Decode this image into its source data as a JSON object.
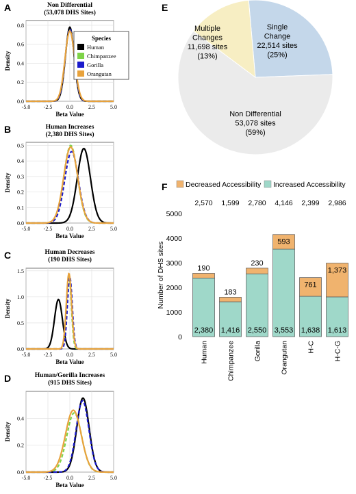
{
  "chart_data": [
    {
      "panel": "A",
      "type": "line",
      "title": "Non Differential",
      "subtitle": "(53,078 DHS Sites)",
      "xlabel": "Beta Value",
      "ylabel": "Density",
      "xlim": [
        -5,
        5
      ],
      "ylim": [
        0,
        0.85
      ],
      "xticks": [
        "-5.0",
        "-2.5",
        "0.0",
        "2.5",
        "5.0"
      ],
      "yticks": [
        "0.0",
        "0.2",
        "0.4",
        "0.6",
        "0.8"
      ],
      "grid": true,
      "legend": {
        "title": "Species",
        "placement": "right",
        "entries": [
          "Human",
          "Chimpanzee",
          "Gorilla",
          "Orangutan"
        ]
      },
      "series": [
        {
          "name": "Human",
          "color": "#000000",
          "style": "solid",
          "mean": 0.0,
          "sd": 0.5,
          "peak": 0.78
        },
        {
          "name": "Chimpanzee",
          "color": "#7ed348",
          "style": "dashed",
          "mean": 0.0,
          "sd": 0.52,
          "peak": 0.76
        },
        {
          "name": "Gorilla",
          "color": "#1a1acc",
          "style": "dashed",
          "mean": 0.0,
          "sd": 0.52,
          "peak": 0.76
        },
        {
          "name": "Orangutan",
          "color": "#e8a23c",
          "style": "solid",
          "mean": 0.0,
          "sd": 0.55,
          "peak": 0.74
        }
      ]
    },
    {
      "panel": "B",
      "type": "line",
      "title": "Human Increases",
      "subtitle": "(2,380 DHS Sites)",
      "xlabel": "Beta Value",
      "ylabel": "Density",
      "xlim": [
        -5,
        5
      ],
      "ylim": [
        0,
        0.52
      ],
      "xticks": [
        "-5.0",
        "-2.5",
        "0.0",
        "2.5",
        "5.0"
      ],
      "yticks": [
        "0.0",
        "0.1",
        "0.2",
        "0.3",
        "0.4",
        "0.5"
      ],
      "grid": true,
      "series": [
        {
          "name": "Human",
          "color": "#000000",
          "style": "solid",
          "mean": 1.6,
          "sd": 0.75,
          "peak": 0.48
        },
        {
          "name": "Chimpanzee",
          "color": "#7ed348",
          "style": "dashed",
          "mean": 0.1,
          "sd": 0.78,
          "peak": 0.5
        },
        {
          "name": "Gorilla",
          "color": "#1a1acc",
          "style": "dashed",
          "mean": 0.2,
          "sd": 0.78,
          "peak": 0.46
        },
        {
          "name": "Orangutan",
          "color": "#e8a23c",
          "style": "solid",
          "mean": 0.1,
          "sd": 0.8,
          "peak": 0.49
        }
      ]
    },
    {
      "panel": "C",
      "type": "line",
      "title": "Human Decreases",
      "subtitle": "(190 DHS Sites)",
      "xlabel": "Beta Value",
      "ylabel": "Density",
      "xlim": [
        -5,
        5
      ],
      "ylim": [
        0,
        1.55
      ],
      "xticks": [
        "-5.0",
        "-2.5",
        "0.0",
        "2.5",
        "5.0"
      ],
      "yticks": [
        "0.0",
        "0.5",
        "1.0",
        "1.5"
      ],
      "grid": true,
      "series": [
        {
          "name": "Human",
          "color": "#000000",
          "style": "solid",
          "mean": -1.3,
          "sd": 0.45,
          "peak": 0.95
        },
        {
          "name": "Chimpanzee",
          "color": "#7ed348",
          "style": "dashed",
          "mean": -0.1,
          "sd": 0.27,
          "peak": 1.42
        },
        {
          "name": "Gorilla",
          "color": "#1a1acc",
          "style": "dashed",
          "mean": 0.0,
          "sd": 0.28,
          "peak": 1.38
        },
        {
          "name": "Orangutan",
          "color": "#e8a23c",
          "style": "solid",
          "mean": -0.1,
          "sd": 0.3,
          "peak": 1.45
        }
      ]
    },
    {
      "panel": "D",
      "type": "line",
      "title": "Human/Gorilla Increases",
      "subtitle": "(915 DHS Sites)",
      "xlabel": "Beta Value",
      "ylabel": "Density",
      "xlim": [
        -5,
        5
      ],
      "ylim": [
        0,
        0.6
      ],
      "xticks": [
        "-5.0",
        "-2.5",
        "0.0",
        "2.5",
        "5.0"
      ],
      "yticks": [
        "0.0",
        "0.2",
        "0.4"
      ],
      "grid": true,
      "series": [
        {
          "name": "Human",
          "color": "#000000",
          "style": "solid",
          "mean": 1.5,
          "sd": 0.7,
          "peak": 0.55
        },
        {
          "name": "Chimpanzee",
          "color": "#7ed348",
          "style": "dashed",
          "mean": 0.5,
          "sd": 0.85,
          "peak": 0.44
        },
        {
          "name": "Gorilla",
          "color": "#1a1acc",
          "style": "dashed",
          "mean": 1.45,
          "sd": 0.72,
          "peak": 0.53
        },
        {
          "name": "Orangutan",
          "color": "#e8a23c",
          "style": "solid",
          "mean": 0.4,
          "sd": 0.9,
          "peak": 0.46
        }
      ]
    },
    {
      "panel": "E",
      "type": "pie",
      "slices": [
        {
          "label": "Single Change",
          "value": 22514,
          "text": "22,514 sites",
          "pct": "(25%)",
          "color": "#c4d7ea"
        },
        {
          "label": "Non Differential",
          "value": 53078,
          "text": "53,078 sites",
          "pct": "(59%)",
          "color": "#ebebeb"
        },
        {
          "label": "Multiple Changes",
          "value": 11698,
          "text": "11,698 sites",
          "pct": "(13%)",
          "color": "#f7eec3"
        }
      ],
      "label_lines": [
        {
          "slice": 0,
          "lines": [
            "Single",
            "Change",
            "22,514 sites",
            "(25%)"
          ]
        },
        {
          "slice": 1,
          "lines": [
            "Non Differential",
            "53,078 sites",
            "(59%)"
          ]
        },
        {
          "slice": 2,
          "lines": [
            "Multiple",
            "Changes",
            "11,698 sites",
            "(13%)"
          ]
        }
      ]
    },
    {
      "panel": "F",
      "type": "bar",
      "stacked": true,
      "ylabel": "Number of DHS sites",
      "ylim": [
        0,
        5000
      ],
      "yticks": [
        "0",
        "1000",
        "2000",
        "3000",
        "4000",
        "5000"
      ],
      "grid": false,
      "legend": {
        "placement": "top",
        "entries": [
          "Decreased Accessibility",
          "Increased Accessibility"
        ]
      },
      "categories": [
        "Human",
        "Chimpanzee",
        "Gorilla",
        "Orangutan",
        "H-C",
        "H-C-G"
      ],
      "totals": [
        "2,570",
        "1,599",
        "2,780",
        "4,146",
        "2,399",
        "2,986"
      ],
      "series": [
        {
          "name": "Increased Accessibility",
          "color": "#9fd8c9",
          "values": [
            2380,
            1416,
            2550,
            3553,
            1638,
            1613
          ],
          "labels": [
            "2,380",
            "1,416",
            "2,550",
            "3,553",
            "1,638",
            "1,613"
          ]
        },
        {
          "name": "Decreased Accessibility",
          "color": "#f0b36e",
          "values": [
            190,
            183,
            230,
            593,
            761,
            1373
          ],
          "labels": [
            "190",
            "183",
            "230",
            "593",
            "761",
            "1,373"
          ]
        }
      ]
    }
  ],
  "panel_letters": [
    "A",
    "B",
    "C",
    "D",
    "E",
    "F"
  ],
  "axis_text": {
    "beta": "Beta Value",
    "density": "Density"
  }
}
